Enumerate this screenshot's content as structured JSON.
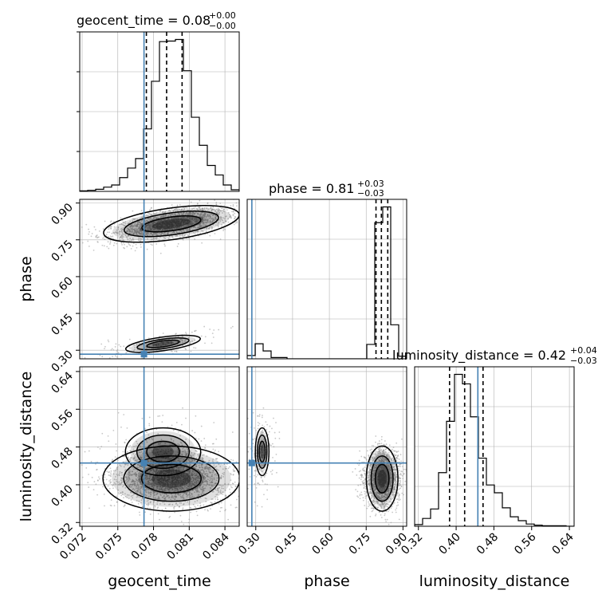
{
  "chart_data": {
    "type": "corner",
    "parameters": [
      "geocent_time",
      "phase",
      "luminosity_distance"
    ],
    "truth": {
      "geocent_time": 0.0772,
      "phase": 0.284,
      "luminosity_distance": 0.446
    },
    "colors": {
      "truth": "#4682b4",
      "hist": "#000000",
      "grid": "#b0b0b0",
      "points": "#9a9a9a"
    },
    "axes": {
      "geocent_time": {
        "label": "geocent_time",
        "range": [
          0.0718,
          0.0852
        ],
        "ticks": [
          0.072,
          0.075,
          0.078,
          0.081,
          0.084
        ],
        "tick_labels": [
          "0.072",
          "0.075",
          "0.078",
          "0.081",
          "0.084"
        ]
      },
      "phase": {
        "label": "phase",
        "range": [
          0.265,
          0.915
        ],
        "ticks": [
          0.3,
          0.45,
          0.6,
          0.75,
          0.9
        ],
        "tick_labels": [
          "0.30",
          "0.45",
          "0.60",
          "0.75",
          "0.90"
        ]
      },
      "luminosity_distance": {
        "label": "luminosity_distance",
        "range": [
          0.312,
          0.65
        ],
        "ticks": [
          0.32,
          0.4,
          0.48,
          0.56,
          0.64
        ],
        "tick_labels": [
          "0.32",
          "0.40",
          "0.48",
          "0.56",
          "0.64"
        ]
      }
    },
    "titles": {
      "geocent_time": {
        "text": "geocent_time = 0.08",
        "sup": "+0.00",
        "sub": "−0.00"
      },
      "phase": {
        "text": "phase = 0.81",
        "sup": "+0.03",
        "sub": "−0.03"
      },
      "luminosity_distance": {
        "text": "luminosity_distance = 0.42",
        "sup": "+0.04",
        "sub": "−0.03"
      }
    },
    "quantiles": {
      "geocent_time": [
        0.0774,
        0.0791,
        0.0804
      ],
      "phase": [
        0.79,
        0.812,
        0.838
      ],
      "luminosity_distance": [
        0.386,
        0.418,
        0.457
      ]
    },
    "histograms": {
      "geocent_time": {
        "bins": [
          0.0718,
          0.07247,
          0.07314,
          0.07381,
          0.07448,
          0.07515,
          0.07582,
          0.07649,
          0.07716,
          0.07783,
          0.0785,
          0.07917,
          0.07984,
          0.08051,
          0.08118,
          0.08185,
          0.08252,
          0.08319,
          0.08386,
          0.08453,
          0.0852
        ],
        "counts": [
          1,
          2,
          4,
          8,
          12,
          26,
          44,
          62,
          118,
          208,
          283,
          284,
          287,
          228,
          140,
          87,
          49,
          31,
          12,
          3
        ]
      },
      "phase": {
        "bins": [
          0.265,
          0.2975,
          0.33,
          0.3625,
          0.395,
          0.4275,
          0.46,
          0.4925,
          0.525,
          0.5575,
          0.59,
          0.6225,
          0.655,
          0.6875,
          0.72,
          0.7525,
          0.785,
          0.8175,
          0.85,
          0.8825,
          0.915
        ],
        "counts": [
          5,
          23,
          12,
          2,
          2,
          0,
          0,
          0,
          0,
          0,
          0,
          0,
          0,
          0,
          0,
          22,
          208,
          232,
          52,
          4
        ]
      },
      "luminosity_distance": {
        "bins": [
          0.312,
          0.3289,
          0.3458,
          0.3627,
          0.3796,
          0.3965,
          0.4134,
          0.4303,
          0.4472,
          0.4641,
          0.481,
          0.4979,
          0.5148,
          0.5317,
          0.5486,
          0.5655,
          0.5824,
          0.5993,
          0.6162,
          0.6331,
          0.65
        ],
        "counts": [
          3,
          14,
          31,
          96,
          188,
          272,
          255,
          196,
          122,
          74,
          60,
          33,
          17,
          10,
          4,
          2,
          1,
          1,
          1,
          0
        ]
      }
    },
    "modes": [
      {
        "geocent_time": [
          0.0795,
          0.0025
        ],
        "phase": [
          0.815,
          0.028
        ],
        "luminosity_distance": [
          0.413,
          0.03
        ],
        "weight": 0.91
      },
      {
        "geocent_time": [
          0.0788,
          0.0025
        ],
        "phase": [
          0.326,
          0.022
        ],
        "luminosity_distance": [
          0.47,
          0.04
        ],
        "weight": 0.09
      }
    ],
    "contour_levels": [
      0.39,
      0.86,
      0.99
    ]
  }
}
